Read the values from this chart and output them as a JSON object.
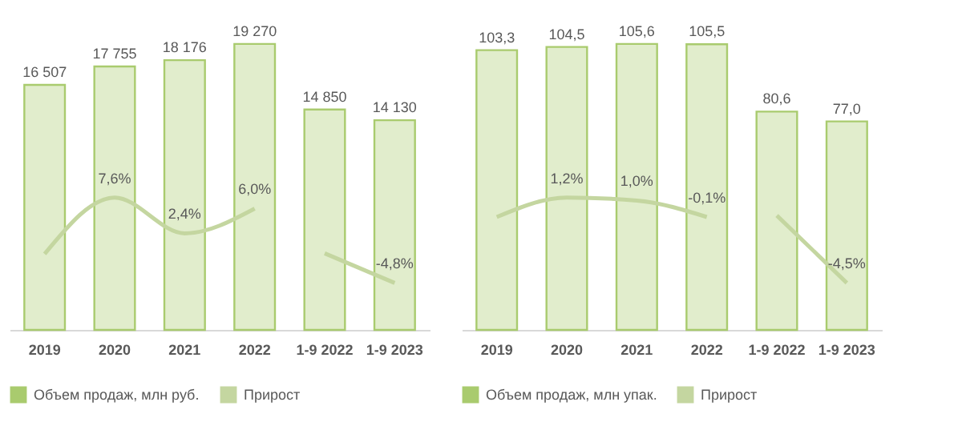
{
  "chart_data": [
    {
      "type": "bar",
      "categories": [
        "2019",
        "2020",
        "2021",
        "2022",
        "1-9 2022",
        "1-9 2023"
      ],
      "legend": "bottom",
      "grid": false,
      "series": [
        {
          "name": "Объем продаж, млн руб.",
          "color": "#a9cb6e",
          "values": [
            16507,
            17755,
            18176,
            19270,
            14850,
            14130
          ],
          "value_labels": [
            "16 507",
            "17 755",
            "18 176",
            "19 270",
            "14 850",
            "14 130"
          ]
        },
        {
          "name": "Прирост",
          "type": "line",
          "axis": "y2",
          "color": "#c4d6a0",
          "values": [
            -0.6,
            7.6,
            2.4,
            6.0,
            null,
            null
          ],
          "value_labels": [
            null,
            "7,6%",
            "2,4%",
            "6,0%",
            null,
            null
          ]
        },
        {
          "type": "line",
          "axis": "y2",
          "color": "#c4d6a0",
          "values": [
            null,
            null,
            null,
            null,
            -0.5,
            -4.8
          ],
          "value_labels": [
            null,
            null,
            null,
            null,
            null,
            "-4,8%"
          ]
        }
      ]
    },
    {
      "type": "bar",
      "categories": [
        "2019",
        "2020",
        "2021",
        "2022",
        "1-9 2022",
        "1-9 2023"
      ],
      "legend": "bottom",
      "grid": false,
      "series": [
        {
          "name": "Объем продаж, млн упак.",
          "color": "#a9cb6e",
          "values": [
            103.3,
            104.5,
            105.6,
            105.5,
            80.6,
            77.0
          ],
          "value_labels": [
            "103,3",
            "104,5",
            "105,6",
            "105,5",
            "80,6",
            "77,0"
          ]
        },
        {
          "name": "Прирост",
          "type": "line",
          "axis": "y2",
          "color": "#c4d6a0",
          "values": [
            -0.1,
            1.2,
            1.0,
            -0.1,
            null,
            null
          ],
          "value_labels": [
            null,
            "1,2%",
            "1,0%",
            "-0,1%",
            null,
            null
          ]
        },
        {
          "type": "line",
          "axis": "y2",
          "color": "#c4d6a0",
          "values": [
            null,
            null,
            null,
            null,
            0.0,
            -4.5
          ],
          "value_labels": [
            null,
            null,
            null,
            null,
            null,
            "-4,5%"
          ]
        }
      ]
    }
  ]
}
